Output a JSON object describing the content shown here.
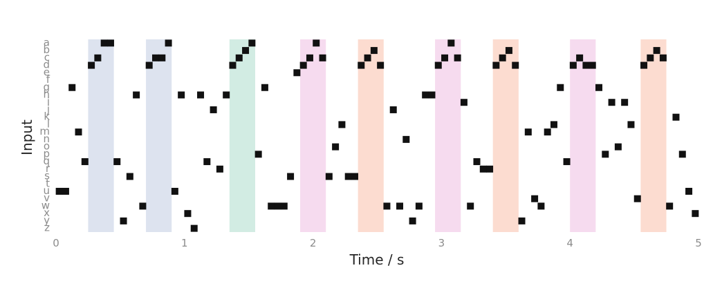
{
  "chart_data": {
    "type": "heatmap",
    "title": "",
    "xlabel": "Time / s",
    "ylabel": "Input",
    "xlim": [
      0,
      5
    ],
    "x_ticks": [
      "0",
      "1",
      "2",
      "3",
      "4",
      "5"
    ],
    "rows": [
      "a",
      "b",
      "c",
      "d",
      "e",
      "f",
      "g",
      "h",
      "i",
      "j",
      "k",
      "l",
      "m",
      "n",
      "o",
      "p",
      "q",
      "r",
      "s",
      "t",
      "u",
      "v",
      "w",
      "x",
      "y",
      "z"
    ],
    "bin_width": 0.05,
    "grid": false,
    "colors": {
      "blue": "#dde3ef",
      "green": "#d2ece3",
      "pink": "#f6dbef",
      "orange": "#fcdcd0",
      "spike": "#111111",
      "label": "#8c8c8c",
      "axis_text": "#262626"
    },
    "highlight_intervals": [
      {
        "start": 0.25,
        "end": 0.45,
        "color": "blue"
      },
      {
        "start": 0.7,
        "end": 0.9,
        "color": "blue"
      },
      {
        "start": 1.35,
        "end": 1.55,
        "color": "green"
      },
      {
        "start": 1.9,
        "end": 2.1,
        "color": "pink"
      },
      {
        "start": 2.35,
        "end": 2.55,
        "color": "orange"
      },
      {
        "start": 2.95,
        "end": 3.15,
        "color": "pink"
      },
      {
        "start": 3.4,
        "end": 3.6,
        "color": "orange"
      },
      {
        "start": 4.0,
        "end": 4.2,
        "color": "pink"
      },
      {
        "start": 4.55,
        "end": 4.75,
        "color": "orange"
      }
    ],
    "spikes": [
      {
        "t": 0.0,
        "row": "u"
      },
      {
        "t": 0.05,
        "row": "u"
      },
      {
        "t": 0.1,
        "row": "g"
      },
      {
        "t": 0.15,
        "row": "m"
      },
      {
        "t": 0.2,
        "row": "q"
      },
      {
        "t": 0.25,
        "row": "d"
      },
      {
        "t": 0.3,
        "row": "c"
      },
      {
        "t": 0.35,
        "row": "a"
      },
      {
        "t": 0.4,
        "row": "a"
      },
      {
        "t": 0.45,
        "row": "q"
      },
      {
        "t": 0.5,
        "row": "y"
      },
      {
        "t": 0.55,
        "row": "s"
      },
      {
        "t": 0.6,
        "row": "h"
      },
      {
        "t": 0.65,
        "row": "w"
      },
      {
        "t": 0.7,
        "row": "d"
      },
      {
        "t": 0.75,
        "row": "c"
      },
      {
        "t": 0.8,
        "row": "c"
      },
      {
        "t": 0.85,
        "row": "a"
      },
      {
        "t": 0.9,
        "row": "u"
      },
      {
        "t": 0.95,
        "row": "h"
      },
      {
        "t": 1.0,
        "row": "x"
      },
      {
        "t": 1.05,
        "row": "z"
      },
      {
        "t": 1.1,
        "row": "h"
      },
      {
        "t": 1.15,
        "row": "q"
      },
      {
        "t": 1.2,
        "row": "j"
      },
      {
        "t": 1.25,
        "row": "r"
      },
      {
        "t": 1.3,
        "row": "h"
      },
      {
        "t": 1.35,
        "row": "d"
      },
      {
        "t": 1.4,
        "row": "c"
      },
      {
        "t": 1.45,
        "row": "b"
      },
      {
        "t": 1.5,
        "row": "a"
      },
      {
        "t": 1.55,
        "row": "p"
      },
      {
        "t": 1.6,
        "row": "g"
      },
      {
        "t": 1.65,
        "row": "w"
      },
      {
        "t": 1.7,
        "row": "w"
      },
      {
        "t": 1.75,
        "row": "w"
      },
      {
        "t": 1.8,
        "row": "s"
      },
      {
        "t": 1.85,
        "row": "e"
      },
      {
        "t": 1.9,
        "row": "d"
      },
      {
        "t": 1.95,
        "row": "c"
      },
      {
        "t": 2.0,
        "row": "a"
      },
      {
        "t": 2.05,
        "row": "c"
      },
      {
        "t": 2.1,
        "row": "s"
      },
      {
        "t": 2.15,
        "row": "o"
      },
      {
        "t": 2.2,
        "row": "l"
      },
      {
        "t": 2.25,
        "row": "s"
      },
      {
        "t": 2.3,
        "row": "s"
      },
      {
        "t": 2.35,
        "row": "d"
      },
      {
        "t": 2.4,
        "row": "c"
      },
      {
        "t": 2.45,
        "row": "b"
      },
      {
        "t": 2.5,
        "row": "d"
      },
      {
        "t": 2.55,
        "row": "w"
      },
      {
        "t": 2.6,
        "row": "j"
      },
      {
        "t": 2.65,
        "row": "w"
      },
      {
        "t": 2.7,
        "row": "n"
      },
      {
        "t": 2.75,
        "row": "y"
      },
      {
        "t": 2.8,
        "row": "w"
      },
      {
        "t": 2.85,
        "row": "h"
      },
      {
        "t": 2.9,
        "row": "h"
      },
      {
        "t": 2.95,
        "row": "d"
      },
      {
        "t": 3.0,
        "row": "c"
      },
      {
        "t": 3.05,
        "row": "a"
      },
      {
        "t": 3.1,
        "row": "c"
      },
      {
        "t": 3.15,
        "row": "i"
      },
      {
        "t": 3.2,
        "row": "w"
      },
      {
        "t": 3.25,
        "row": "q"
      },
      {
        "t": 3.3,
        "row": "r"
      },
      {
        "t": 3.35,
        "row": "r"
      },
      {
        "t": 3.4,
        "row": "d"
      },
      {
        "t": 3.45,
        "row": "c"
      },
      {
        "t": 3.5,
        "row": "b"
      },
      {
        "t": 3.55,
        "row": "d"
      },
      {
        "t": 3.6,
        "row": "y"
      },
      {
        "t": 3.65,
        "row": "m"
      },
      {
        "t": 3.7,
        "row": "v"
      },
      {
        "t": 3.75,
        "row": "w"
      },
      {
        "t": 3.8,
        "row": "m"
      },
      {
        "t": 3.85,
        "row": "l"
      },
      {
        "t": 3.9,
        "row": "g"
      },
      {
        "t": 3.95,
        "row": "q"
      },
      {
        "t": 4.0,
        "row": "d"
      },
      {
        "t": 4.05,
        "row": "c"
      },
      {
        "t": 4.1,
        "row": "d"
      },
      {
        "t": 4.15,
        "row": "d"
      },
      {
        "t": 4.2,
        "row": "g"
      },
      {
        "t": 4.25,
        "row": "p"
      },
      {
        "t": 4.3,
        "row": "i"
      },
      {
        "t": 4.35,
        "row": "o"
      },
      {
        "t": 4.4,
        "row": "i"
      },
      {
        "t": 4.45,
        "row": "l"
      },
      {
        "t": 4.5,
        "row": "v"
      },
      {
        "t": 4.55,
        "row": "d"
      },
      {
        "t": 4.6,
        "row": "c"
      },
      {
        "t": 4.65,
        "row": "b"
      },
      {
        "t": 4.7,
        "row": "c"
      },
      {
        "t": 4.75,
        "row": "w"
      },
      {
        "t": 4.8,
        "row": "k"
      },
      {
        "t": 4.85,
        "row": "p"
      },
      {
        "t": 4.9,
        "row": "u"
      },
      {
        "t": 4.95,
        "row": "x"
      }
    ]
  }
}
